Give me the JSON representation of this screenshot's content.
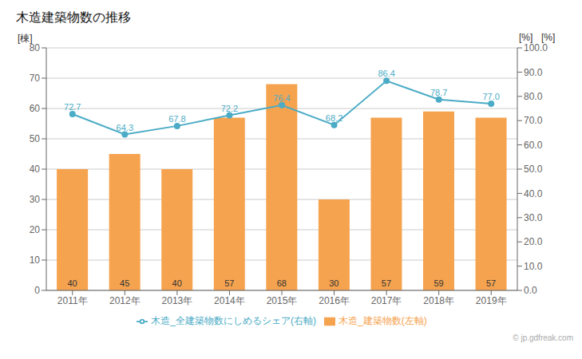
{
  "chart_data": {
    "type": "bar",
    "title": "木造建築物数の推移",
    "categories": [
      "2011年",
      "2012年",
      "2013年",
      "2014年",
      "2015年",
      "2016年",
      "2017年",
      "2018年",
      "2019年"
    ],
    "series": [
      {
        "name": "木造_建築物数(左軸)",
        "type": "bar",
        "color": "#f5a34f",
        "values": [
          40,
          45,
          40,
          57,
          68,
          30,
          57,
          59,
          57
        ],
        "data_labels": true
      },
      {
        "name": "木造_全建築物数にしめるシェア(右軸)",
        "type": "line",
        "axis": "y2",
        "color": "#4bacc6",
        "marker": "circle",
        "values": [
          72.7,
          64.3,
          67.8,
          72.2,
          76.4,
          68.2,
          86.4,
          78.7,
          77.0
        ],
        "value_labels": [
          "72.7",
          "64.3",
          "67.8",
          "72.2",
          "76.4",
          "68.2",
          "86.4",
          "78.7",
          "77.0"
        ],
        "data_labels": true
      }
    ],
    "ylabel": "[棟]",
    "y2label": "[%]",
    "annotations": [
      "[%]",
      "© jp.gdfreak.com"
    ],
    "ylim": [
      0,
      80
    ],
    "yticks": [
      0,
      10,
      20,
      30,
      40,
      50,
      60,
      70,
      80
    ],
    "y2lim": [
      0.0,
      100.0
    ],
    "y2ticks": [
      {
        "value": 0,
        "label": "0.0"
      },
      {
        "value": 10,
        "label": "10.0"
      },
      {
        "value": 20,
        "label": "20.0"
      },
      {
        "value": 30,
        "label": "30.0"
      },
      {
        "value": 40,
        "label": "40.0"
      },
      {
        "value": 50,
        "label": "50.0"
      },
      {
        "value": 60,
        "label": "60.0"
      },
      {
        "value": 70,
        "label": "70.0"
      },
      {
        "value": 80,
        "label": "80.0"
      },
      {
        "value": 90,
        "label": "90.0"
      },
      {
        "value": 100,
        "label": "100.0"
      }
    ],
    "grid": true,
    "legend": "bottom"
  }
}
